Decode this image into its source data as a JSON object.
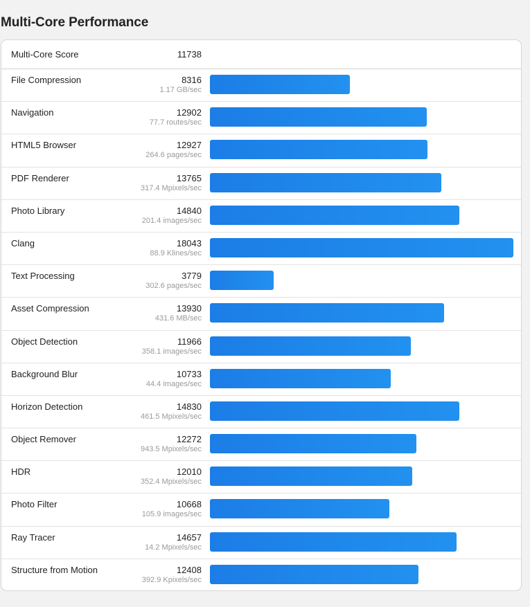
{
  "page": {
    "title": "Multi-Core Performance"
  },
  "summary": {
    "label": "Multi-Core Score",
    "value": "11738"
  },
  "colors": {
    "bar_start": "#1c7de6",
    "bar_end": "#2291ef",
    "rate_text": "#9a9a9a"
  },
  "chart_data": {
    "type": "bar",
    "orientation": "horizontal",
    "title": "Multi-Core Performance",
    "xlabel": "",
    "ylabel": "",
    "xlim": [
      0,
      18043
    ],
    "grid": false,
    "legend": "none",
    "categories": [
      "File Compression",
      "Navigation",
      "HTML5 Browser",
      "PDF Renderer",
      "Photo Library",
      "Clang",
      "Text Processing",
      "Asset Compression",
      "Object Detection",
      "Background Blur",
      "Horizon Detection",
      "Object Remover",
      "HDR",
      "Photo Filter",
      "Ray Tracer",
      "Structure from Motion"
    ],
    "values": [
      8316,
      12902,
      12927,
      13765,
      14840,
      18043,
      3779,
      13930,
      11966,
      10733,
      14830,
      12272,
      12010,
      10668,
      14657,
      12408
    ],
    "rates": [
      "1.17 GB/sec",
      "77.7 routes/sec",
      "264.6 pages/sec",
      "317.4 Mpixels/sec",
      "201.4 images/sec",
      "88.9 Klines/sec",
      "302.6 pages/sec",
      "431.6 MB/sec",
      "358.1 images/sec",
      "44.4 images/sec",
      "461.5 Mpixels/sec",
      "943.5 Mpixels/sec",
      "352.4 Mpixels/sec",
      "105.9 images/sec",
      "14.2 Mpixels/sec",
      "392.9 Kpixels/sec"
    ]
  }
}
